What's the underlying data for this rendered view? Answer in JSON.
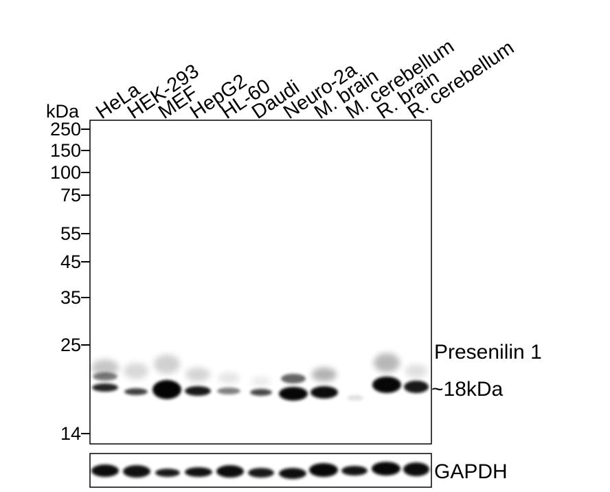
{
  "unit_label": "kDa",
  "markers": [
    "250",
    "150",
    "100",
    "75",
    "55",
    "45",
    "35",
    "25",
    "14"
  ],
  "lanes": [
    "HeLa",
    "HEK-293",
    "MEF",
    "HepG2",
    "HL-60",
    "Daudi",
    "Neuro-2a",
    "M. brain",
    "M. cerebellum",
    "R. brain",
    "R. cerebellum"
  ],
  "target_label": "Presenilin 1",
  "band_size_label": "~18kDa",
  "control_label": "GAPDH"
}
